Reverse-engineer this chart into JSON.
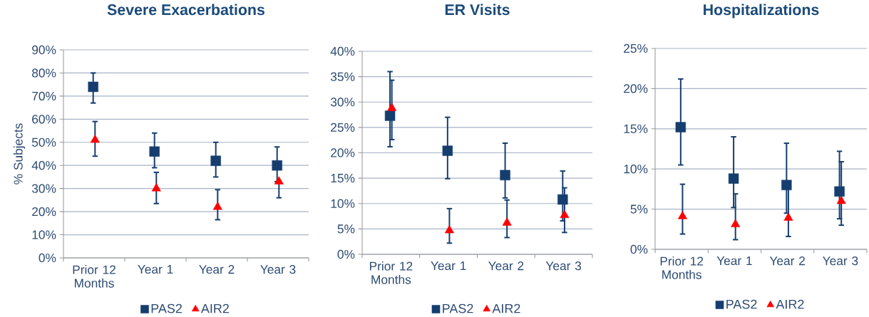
{
  "chart_data": [
    {
      "type": "scatter",
      "title": "Severe Exacerbations",
      "ylabel": "% Subjects",
      "categories": [
        "Prior 12 Months",
        "Year 1",
        "Year 2",
        "Year 3"
      ],
      "series": [
        {
          "name": "PAS2",
          "color": "#153e6f",
          "marker": "square",
          "values": [
            74,
            46,
            42,
            40
          ],
          "errors": [
            [
              67,
              80
            ],
            [
              39,
              54
            ],
            [
              35,
              50
            ],
            [
              33,
              48
            ]
          ]
        },
        {
          "name": "AIR2",
          "color": "#ff0000",
          "marker": "triangle",
          "values": [
            51,
            30,
            22,
            33
          ],
          "errors": [
            [
              44,
              59
            ],
            [
              23.5,
              37
            ],
            [
              16.5,
              29.5
            ],
            [
              26,
              33
            ]
          ]
        }
      ],
      "ylim": [
        0,
        90
      ],
      "yticks": [
        {
          "value": 0,
          "label": "0%"
        },
        {
          "value": 10,
          "label": "10%"
        },
        {
          "value": 20,
          "label": "20%"
        },
        {
          "value": 30,
          "label": "30%"
        },
        {
          "value": 40,
          "label": "40%"
        },
        {
          "value": 50,
          "label": "50%"
        },
        {
          "value": 60,
          "label": "60%"
        },
        {
          "value": 70,
          "label": "70%"
        },
        {
          "value": 80,
          "label": "80%"
        },
        {
          "value": 90,
          "label": "90%"
        }
      ],
      "grid": "y",
      "legend": "bottom"
    },
    {
      "type": "scatter",
      "title": "ER Visits",
      "categories": [
        "Prior 12 Months",
        "Year 1",
        "Year 2",
        "Year 3"
      ],
      "series": [
        {
          "name": "PAS2",
          "color": "#153e6f",
          "marker": "square",
          "values": [
            27.3,
            20.4,
            15.6,
            10.8
          ],
          "errors": [
            [
              21.2,
              36
            ],
            [
              14.9,
              27
            ],
            [
              11.1,
              21.9
            ],
            [
              6.6,
              16.4
            ]
          ]
        },
        {
          "name": "AIR2",
          "color": "#ff0000",
          "marker": "triangle",
          "values": [
            28.8,
            4.7,
            6.2,
            7.7
          ],
          "errors": [
            [
              22.6,
              34.3
            ],
            [
              2.2,
              9
            ],
            [
              3.3,
              10.7
            ],
            [
              4.3,
              13.1
            ]
          ]
        }
      ],
      "ylim": [
        0,
        40
      ],
      "yticks": [
        {
          "value": 0,
          "label": "0%"
        },
        {
          "value": 5,
          "label": "5%"
        },
        {
          "value": 10,
          "label": "10%"
        },
        {
          "value": 15,
          "label": "15%"
        },
        {
          "value": 20,
          "label": "20%"
        },
        {
          "value": 25,
          "label": "25%"
        },
        {
          "value": 30,
          "label": "30%"
        },
        {
          "value": 35,
          "label": "35%"
        },
        {
          "value": 40,
          "label": "40%"
        }
      ],
      "grid": "y",
      "legend": "bottom"
    },
    {
      "type": "scatter",
      "title": "Hospitalizations",
      "categories": [
        "Prior 12 Months",
        "Year 1",
        "Year 2",
        "Year 3"
      ],
      "series": [
        {
          "name": "PAS2",
          "color": "#153e6f",
          "marker": "square",
          "values": [
            15.2,
            8.8,
            8,
            7.2
          ],
          "errors": [
            [
              10.5,
              21.2
            ],
            [
              5.2,
              14
            ],
            [
              4.5,
              13.2
            ],
            [
              3.8,
              12.2
            ]
          ]
        },
        {
          "name": "AIR2",
          "color": "#ff0000",
          "marker": "triangle",
          "values": [
            4.1,
            3.1,
            3.9,
            6
          ],
          "errors": [
            [
              1.9,
              8.1
            ],
            [
              1.2,
              6.9
            ],
            [
              1.6,
              7.6
            ],
            [
              3,
              10.9
            ]
          ]
        }
      ],
      "ylim": [
        0,
        25
      ],
      "yticks": [
        {
          "value": 0,
          "label": "0%"
        },
        {
          "value": 5,
          "label": "5%"
        },
        {
          "value": 10,
          "label": "10%"
        },
        {
          "value": 15,
          "label": "15%"
        },
        {
          "value": 20,
          "label": "20%"
        },
        {
          "value": 25,
          "label": "25%"
        }
      ],
      "grid": "y",
      "legend": "bottom"
    }
  ]
}
